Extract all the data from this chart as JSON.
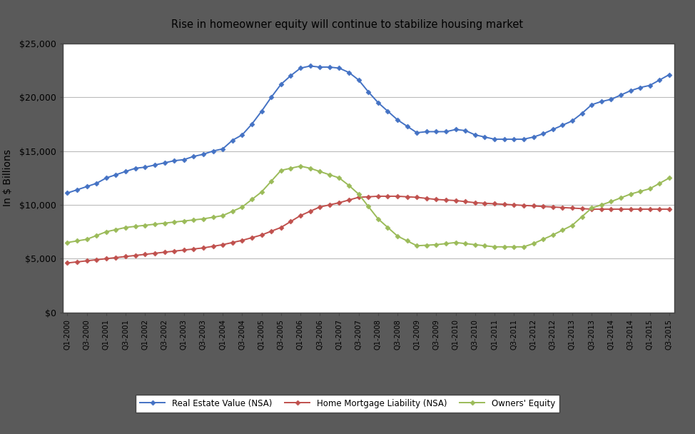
{
  "title": "Rise in homeowner equity will continue to stabilize housing market",
  "ylabel": "In $ Billions",
  "ylim": [
    0,
    25000
  ],
  "yticks": [
    0,
    5000,
    10000,
    15000,
    20000,
    25000
  ],
  "ytick_labels": [
    "$0",
    "$5,000",
    "$10,000",
    "$15,000",
    "$20,000",
    "$25,000"
  ],
  "real_estate": [
    11100,
    11400,
    11700,
    12000,
    12500,
    12800,
    13100,
    13400,
    13500,
    13700,
    13900,
    14100,
    14200,
    14500,
    14700,
    15000,
    15200,
    16000,
    16500,
    17500,
    18700,
    20000,
    21200,
    22000,
    22700,
    22900,
    22800,
    22800,
    22700,
    22300,
    21600,
    20500,
    19500,
    18700,
    17900,
    17300,
    16700,
    16800,
    16800,
    16800,
    17000,
    16900,
    16500,
    16300,
    16100,
    16100,
    16100,
    16100,
    16300,
    16600,
    17000,
    17400,
    17800,
    18500,
    19300,
    19600,
    19800,
    20200,
    20600,
    20900,
    21100,
    21600,
    22100
  ],
  "mortgage": [
    4600,
    4700,
    4800,
    4900,
    5000,
    5100,
    5200,
    5300,
    5400,
    5500,
    5600,
    5700,
    5800,
    5900,
    6000,
    6150,
    6300,
    6500,
    6700,
    6950,
    7200,
    7550,
    7900,
    8450,
    9000,
    9400,
    9800,
    10000,
    10200,
    10450,
    10700,
    10750,
    10800,
    10800,
    10800,
    10750,
    10700,
    10600,
    10500,
    10450,
    10400,
    10300,
    10200,
    10150,
    10100,
    10050,
    10000,
    9950,
    9900,
    9850,
    9800,
    9750,
    9700,
    9650,
    9600,
    9600,
    9600,
    9600,
    9600,
    9600,
    9600,
    9600,
    9600
  ],
  "equity": [
    6500,
    6650,
    6800,
    7150,
    7500,
    7700,
    7900,
    8000,
    8100,
    8200,
    8300,
    8400,
    8500,
    8600,
    8700,
    8850,
    9000,
    9400,
    9800,
    10500,
    11200,
    12200,
    13200,
    13400,
    13600,
    13400,
    13100,
    12800,
    12500,
    11800,
    11000,
    9850,
    8700,
    7900,
    7100,
    6650,
    6200,
    6250,
    6300,
    6400,
    6500,
    6400,
    6300,
    6200,
    6100,
    6100,
    6100,
    6100,
    6400,
    6800,
    7200,
    7650,
    8100,
    8900,
    9700,
    10000,
    10300,
    10650,
    11000,
    11250,
    11500,
    12000,
    12500
  ],
  "real_estate_color": "#4472C4",
  "mortgage_color": "#C0504D",
  "equity_color": "#9BBB59",
  "frame_color": "#5A5A5A",
  "bg_color": "#FFFFFF",
  "grid_color": "#BBBBBB",
  "legend_labels": [
    "Real Estate Value (NSA)",
    "Home Mortgage Liability (NSA)",
    "Owners' Equity"
  ],
  "marker": "D",
  "markersize": 3.5,
  "linewidth": 1.4
}
